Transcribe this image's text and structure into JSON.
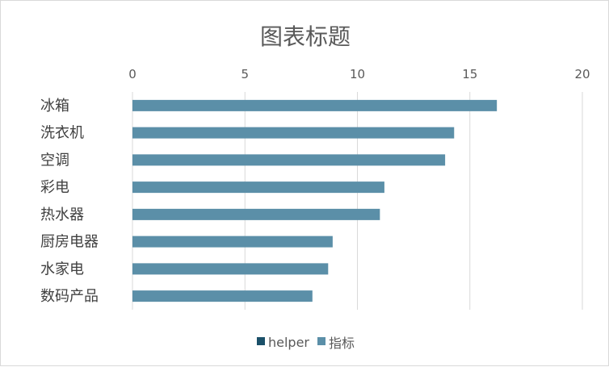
{
  "chart_data": {
    "type": "bar",
    "orientation": "horizontal",
    "title": "图表标题",
    "xlabel": "",
    "ylabel": "",
    "xlim": [
      0,
      20
    ],
    "x_ticks": [
      0,
      5,
      10,
      15,
      20
    ],
    "x_axis_position": "top",
    "grid": true,
    "categories": [
      "冰箱",
      "洗衣机",
      "空调",
      "彩电",
      "热水器",
      "厨房电器",
      "水家电",
      "数码产品"
    ],
    "series": [
      {
        "name": "helper",
        "color": "#1b5069",
        "values": [
          0,
          0,
          0,
          0,
          0,
          0,
          0,
          0
        ]
      },
      {
        "name": "指标",
        "color": "#5b8fa8",
        "values": [
          16.2,
          14.3,
          13.9,
          11.2,
          11.0,
          8.9,
          8.7,
          8.0
        ]
      }
    ],
    "legend_position": "bottom"
  }
}
